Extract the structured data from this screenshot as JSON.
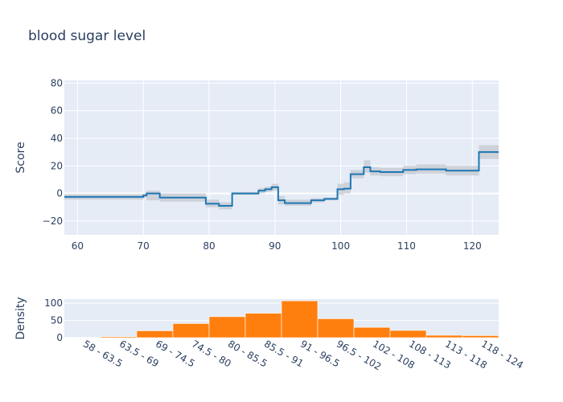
{
  "chart_data": [
    {
      "type": "line",
      "title": "blood sugar level",
      "xlabel": "",
      "ylabel": "Score",
      "xlim": [
        58,
        124
      ],
      "ylim": [
        -30,
        82
      ],
      "x_ticks": [
        60,
        70,
        80,
        90,
        100,
        110,
        120
      ],
      "y_ticks": [
        -20,
        0,
        20,
        40,
        60,
        80
      ],
      "grid": true,
      "line_color": "#1f77b4",
      "band_color": "#c9ccd3",
      "background": "#e5ecf6",
      "steps": [
        {
          "x0": 58,
          "x1": 70,
          "y": -2.5,
          "lo": -4.5,
          "hi": -0.5
        },
        {
          "x0": 70,
          "x1": 70.5,
          "y": -1.5,
          "lo": -3,
          "hi": 0
        },
        {
          "x0": 70.5,
          "x1": 72.5,
          "y": 0,
          "lo": -5,
          "hi": 2
        },
        {
          "x0": 72.5,
          "x1": 79.5,
          "y": -3,
          "lo": -6,
          "hi": 0
        },
        {
          "x0": 79.5,
          "x1": 81.5,
          "y": -7.5,
          "lo": -10,
          "hi": -4.5
        },
        {
          "x0": 81.5,
          "x1": 83.5,
          "y": -9,
          "lo": -11.5,
          "hi": -6.5
        },
        {
          "x0": 83.5,
          "x1": 87.5,
          "y": 0,
          "lo": -1,
          "hi": 1
        },
        {
          "x0": 87.5,
          "x1": 88.5,
          "y": 2,
          "lo": 0,
          "hi": 4
        },
        {
          "x0": 88.5,
          "x1": 89.5,
          "y": 3,
          "lo": 1,
          "hi": 5
        },
        {
          "x0": 89.5,
          "x1": 90.5,
          "y": 4.5,
          "lo": 2,
          "hi": 7
        },
        {
          "x0": 90.5,
          "x1": 91.5,
          "y": -5,
          "lo": -8,
          "hi": -2
        },
        {
          "x0": 91.5,
          "x1": 95.5,
          "y": -7,
          "lo": -9,
          "hi": -4.5
        },
        {
          "x0": 95.5,
          "x1": 97.5,
          "y": -5,
          "lo": -6.5,
          "hi": -3.5
        },
        {
          "x0": 97.5,
          "x1": 99.5,
          "y": -4,
          "lo": -5,
          "hi": -3
        },
        {
          "x0": 99.5,
          "x1": 100.5,
          "y": 3,
          "lo": -1,
          "hi": 7
        },
        {
          "x0": 100.5,
          "x1": 101.5,
          "y": 3.5,
          "lo": 0,
          "hi": 8
        },
        {
          "x0": 101.5,
          "x1": 103.5,
          "y": 14,
          "lo": 11,
          "hi": 17
        },
        {
          "x0": 103.5,
          "x1": 104.5,
          "y": 19,
          "lo": 15,
          "hi": 24
        },
        {
          "x0": 104.5,
          "x1": 106,
          "y": 16,
          "lo": 13,
          "hi": 19
        },
        {
          "x0": 106,
          "x1": 109.5,
          "y": 15.5,
          "lo": 12.5,
          "hi": 18.5
        },
        {
          "x0": 109.5,
          "x1": 111.5,
          "y": 17,
          "lo": 14,
          "hi": 20
        },
        {
          "x0": 111.5,
          "x1": 116,
          "y": 17.5,
          "lo": 14.5,
          "hi": 21
        },
        {
          "x0": 116,
          "x1": 121,
          "y": 16.5,
          "lo": 13,
          "hi": 20
        },
        {
          "x0": 121,
          "x1": 124,
          "y": 30,
          "lo": 25,
          "hi": 35
        }
      ]
    },
    {
      "type": "bar",
      "xlabel": "",
      "ylabel": "Density",
      "ylim": [
        0,
        112
      ],
      "y_ticks": [
        0,
        50,
        100
      ],
      "bar_color": "#ff7f0e",
      "categories": [
        "58 - 63.5",
        "63.5 - 69",
        "69 - 74.5",
        "74.5 - 80",
        "80 - 85.5",
        "85.5 - 91",
        "91 - 96.5",
        "96.5 - 102",
        "102 - 108",
        "108 - 113",
        "113 - 118",
        "118 - 124"
      ],
      "values": [
        1,
        3,
        20,
        41,
        61,
        71,
        107,
        55,
        30,
        21,
        7,
        6
      ]
    }
  ]
}
